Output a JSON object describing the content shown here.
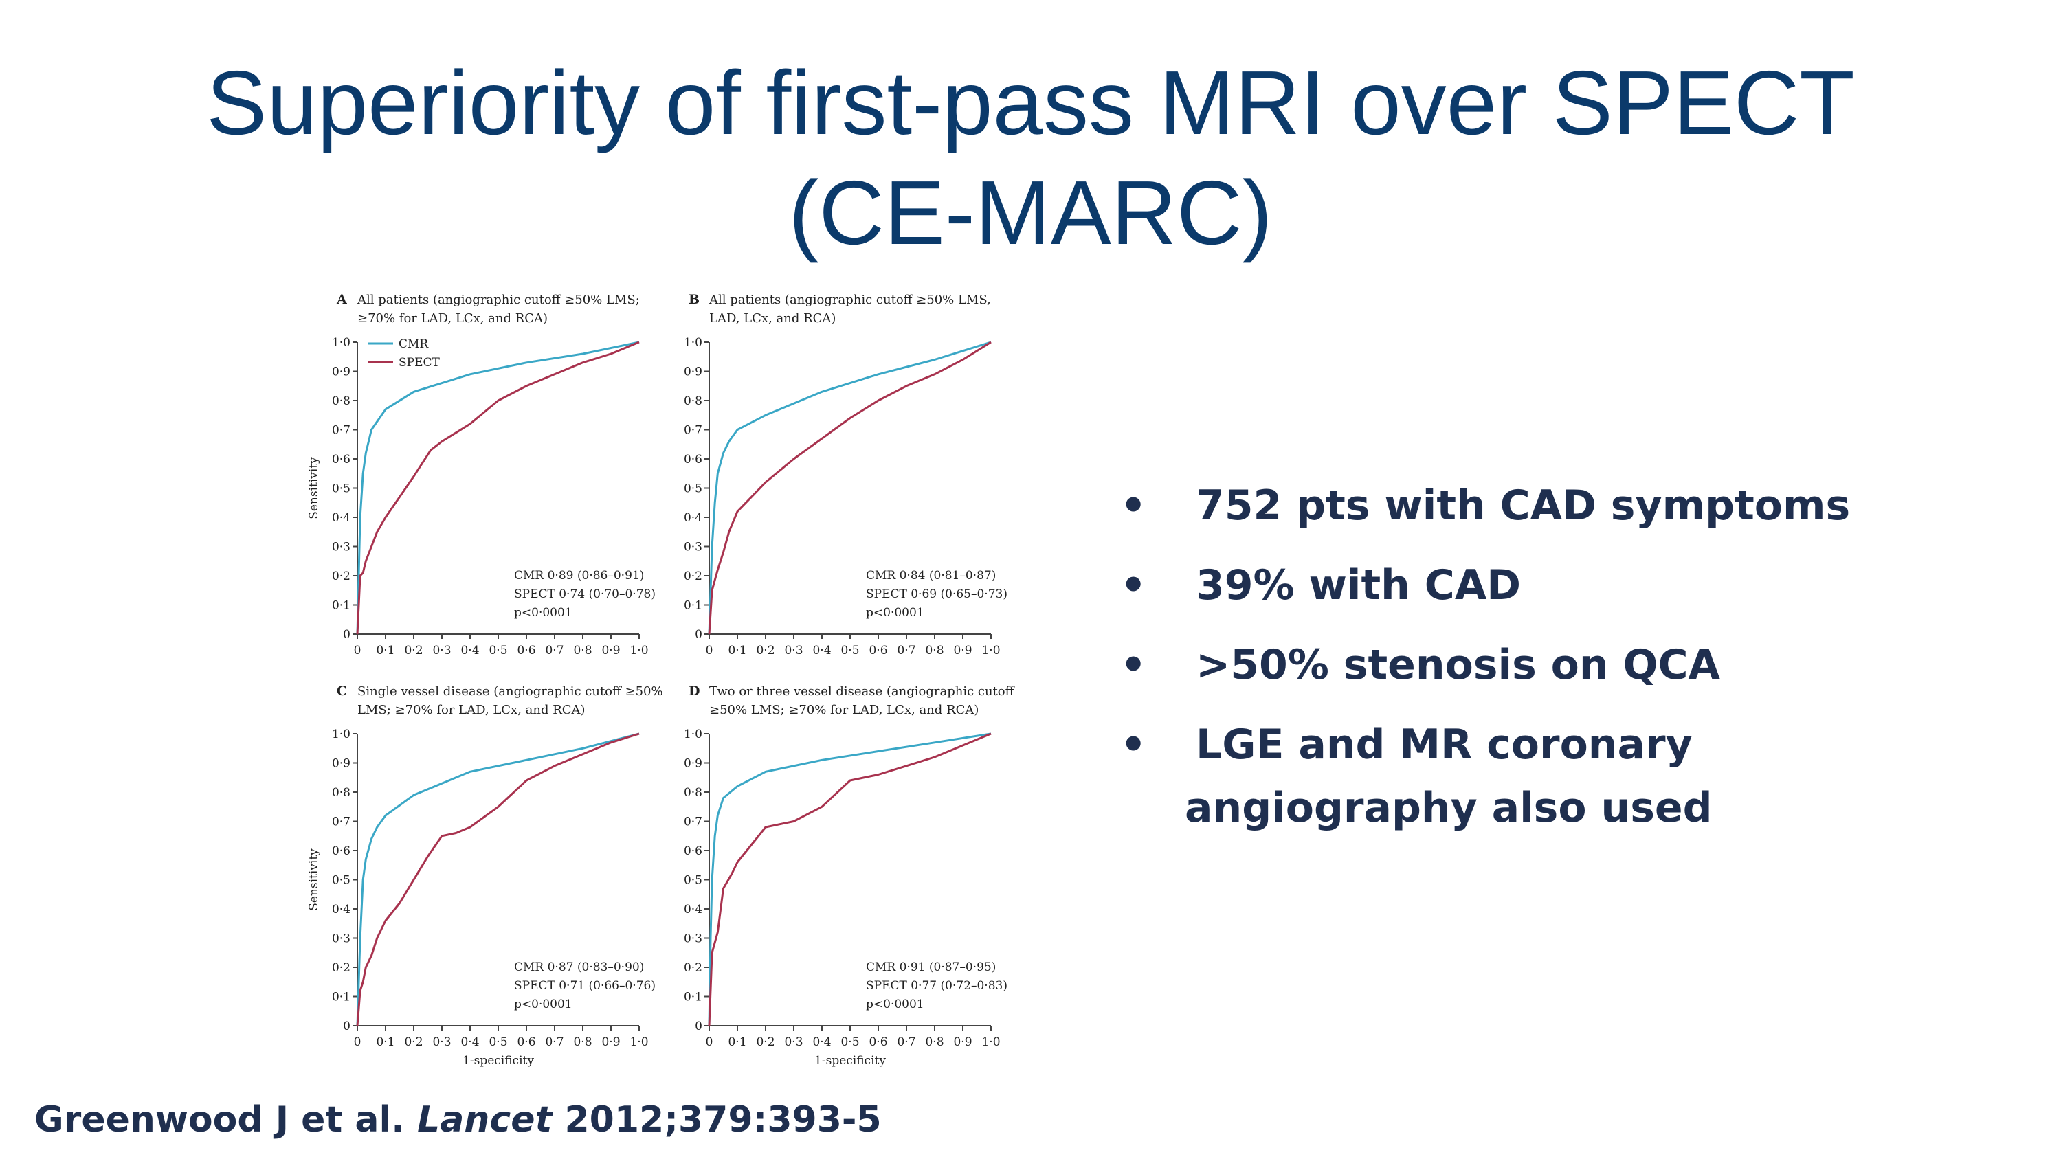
{
  "slide": {
    "title_line1": "Superiority of first-pass MRI over SPECT",
    "title_line2": "(CE-MARC)",
    "bullets": [
      {
        "text": "752 pts with CAD symptoms"
      },
      {
        "text": "39% with CAD"
      },
      {
        "text": ">50% stenosis on QCA"
      },
      {
        "text": "LGE and MR coronary",
        "cont": "angiography also used"
      }
    ],
    "bullet_symbol": "•",
    "citation": {
      "authors": "Greenwood J et al. ",
      "journal": "Lancet",
      "ref": " 2012;379:393-5"
    }
  },
  "colors": {
    "title": "#0b3a6b",
    "cmr": "#3aa7c6",
    "spect": "#a8324e",
    "text": "#1f2f4f"
  },
  "chart_data": [
    {
      "type": "line",
      "panel": "A",
      "title_lines": [
        "All patients (angiographic cutoff ≥50% LMS;",
        "≥70% for LAD, LCx, and RCA)"
      ],
      "xlabel": "",
      "ylabel": "Sensitivity",
      "xlim": [
        0,
        1
      ],
      "ylim": [
        0,
        1
      ],
      "ticks": [
        "0",
        "0·1",
        "0·2",
        "0·3",
        "0·4",
        "0·5",
        "0·6",
        "0·7",
        "0·8",
        "0·9",
        "1·0"
      ],
      "legend": [
        "CMR",
        "SPECT"
      ],
      "legend_position": "top-left",
      "annotation": [
        "CMR 0·89 (0·86–0·91)",
        "SPECT 0·74 (0·70–0·78)",
        "p<0·0001"
      ],
      "series": [
        {
          "name": "CMR",
          "x": [
            0,
            0.005,
            0.01,
            0.02,
            0.03,
            0.05,
            0.1,
            0.2,
            0.4,
            0.6,
            0.8,
            1.0
          ],
          "y": [
            0,
            0.2,
            0.4,
            0.55,
            0.62,
            0.7,
            0.77,
            0.83,
            0.89,
            0.93,
            0.96,
            1.0
          ]
        },
        {
          "name": "SPECT",
          "x": [
            0,
            0.01,
            0.02,
            0.03,
            0.05,
            0.07,
            0.1,
            0.15,
            0.2,
            0.26,
            0.3,
            0.35,
            0.4,
            0.5,
            0.6,
            0.7,
            0.8,
            0.9,
            1.0
          ],
          "y": [
            0,
            0.2,
            0.21,
            0.25,
            0.3,
            0.35,
            0.4,
            0.47,
            0.54,
            0.63,
            0.66,
            0.69,
            0.72,
            0.8,
            0.85,
            0.89,
            0.93,
            0.96,
            1.0
          ]
        }
      ]
    },
    {
      "type": "line",
      "panel": "B",
      "title_lines": [
        "All patients (angiographic cutoff ≥50% LMS,",
        "LAD, LCx, and RCA)"
      ],
      "xlabel": "",
      "ylabel": "",
      "xlim": [
        0,
        1
      ],
      "ylim": [
        0,
        1
      ],
      "ticks": [
        "0",
        "0·1",
        "0·2",
        "0·3",
        "0·4",
        "0·5",
        "0·6",
        "0·7",
        "0·8",
        "0·9",
        "1·0"
      ],
      "legend": [],
      "legend_position": "none",
      "annotation": [
        "CMR 0·84 (0·81–0·87)",
        "SPECT 0·69 (0·65–0·73)",
        "p<0·0001"
      ],
      "series": [
        {
          "name": "CMR",
          "x": [
            0,
            0.01,
            0.02,
            0.03,
            0.05,
            0.07,
            0.1,
            0.2,
            0.4,
            0.6,
            0.8,
            1.0
          ],
          "y": [
            0,
            0.3,
            0.45,
            0.55,
            0.62,
            0.66,
            0.7,
            0.75,
            0.83,
            0.89,
            0.94,
            1.0
          ]
        },
        {
          "name": "SPECT",
          "x": [
            0,
            0.01,
            0.03,
            0.05,
            0.07,
            0.1,
            0.15,
            0.2,
            0.3,
            0.4,
            0.5,
            0.6,
            0.7,
            0.8,
            0.9,
            1.0
          ],
          "y": [
            0,
            0.15,
            0.22,
            0.28,
            0.35,
            0.42,
            0.47,
            0.52,
            0.6,
            0.67,
            0.74,
            0.8,
            0.85,
            0.89,
            0.94,
            1.0
          ]
        }
      ]
    },
    {
      "type": "line",
      "panel": "C",
      "title_lines": [
        "Single vessel disease (angiographic cutoff ≥50%",
        "LMS; ≥70% for LAD, LCx, and RCA)"
      ],
      "xlabel": "1-specificity",
      "ylabel": "Sensitivity",
      "xlim": [
        0,
        1
      ],
      "ylim": [
        0,
        1
      ],
      "ticks": [
        "0",
        "0·1",
        "0·2",
        "0·3",
        "0·4",
        "0·5",
        "0·6",
        "0·7",
        "0·8",
        "0·9",
        "1·0"
      ],
      "legend": [],
      "legend_position": "none",
      "annotation": [
        "CMR 0·87 (0·83–0·90)",
        "SPECT 0·71 (0·66–0·76)",
        "p<0·0001"
      ],
      "series": [
        {
          "name": "CMR",
          "x": [
            0,
            0.01,
            0.02,
            0.03,
            0.05,
            0.07,
            0.1,
            0.2,
            0.4,
            0.6,
            0.8,
            1.0
          ],
          "y": [
            0,
            0.3,
            0.5,
            0.57,
            0.64,
            0.68,
            0.72,
            0.79,
            0.87,
            0.91,
            0.95,
            1.0
          ]
        },
        {
          "name": "SPECT",
          "x": [
            0,
            0.01,
            0.02,
            0.03,
            0.05,
            0.07,
            0.1,
            0.15,
            0.2,
            0.25,
            0.3,
            0.35,
            0.4,
            0.5,
            0.6,
            0.7,
            0.8,
            0.9,
            1.0
          ],
          "y": [
            0,
            0.12,
            0.15,
            0.2,
            0.24,
            0.3,
            0.36,
            0.42,
            0.5,
            0.58,
            0.65,
            0.66,
            0.68,
            0.75,
            0.84,
            0.89,
            0.93,
            0.97,
            1.0
          ]
        }
      ]
    },
    {
      "type": "line",
      "panel": "D",
      "title_lines": [
        "Two or three vessel disease (angiographic cutoff",
        "≥50% LMS; ≥70% for LAD, LCx, and RCA)"
      ],
      "xlabel": "1-specificity",
      "ylabel": "",
      "xlim": [
        0,
        1
      ],
      "ylim": [
        0,
        1
      ],
      "ticks": [
        "0",
        "0·1",
        "0·2",
        "0·3",
        "0·4",
        "0·5",
        "0·6",
        "0·7",
        "0·8",
        "0·9",
        "1·0"
      ],
      "legend": [],
      "legend_position": "none",
      "annotation": [
        "CMR 0·91 (0·87–0·95)",
        "SPECT 0·77 (0·72–0·83)",
        "p<0·0001"
      ],
      "series": [
        {
          "name": "CMR",
          "x": [
            0,
            0.005,
            0.01,
            0.02,
            0.03,
            0.05,
            0.1,
            0.2,
            0.4,
            0.6,
            0.8,
            1.0
          ],
          "y": [
            0,
            0.3,
            0.5,
            0.65,
            0.72,
            0.78,
            0.82,
            0.87,
            0.91,
            0.94,
            0.97,
            1.0
          ]
        },
        {
          "name": "SPECT",
          "x": [
            0,
            0.01,
            0.03,
            0.05,
            0.08,
            0.1,
            0.15,
            0.2,
            0.3,
            0.4,
            0.5,
            0.6,
            0.7,
            0.8,
            0.9,
            1.0
          ],
          "y": [
            0,
            0.25,
            0.32,
            0.47,
            0.52,
            0.56,
            0.62,
            0.68,
            0.7,
            0.75,
            0.84,
            0.86,
            0.89,
            0.92,
            0.96,
            1.0
          ]
        }
      ]
    }
  ]
}
